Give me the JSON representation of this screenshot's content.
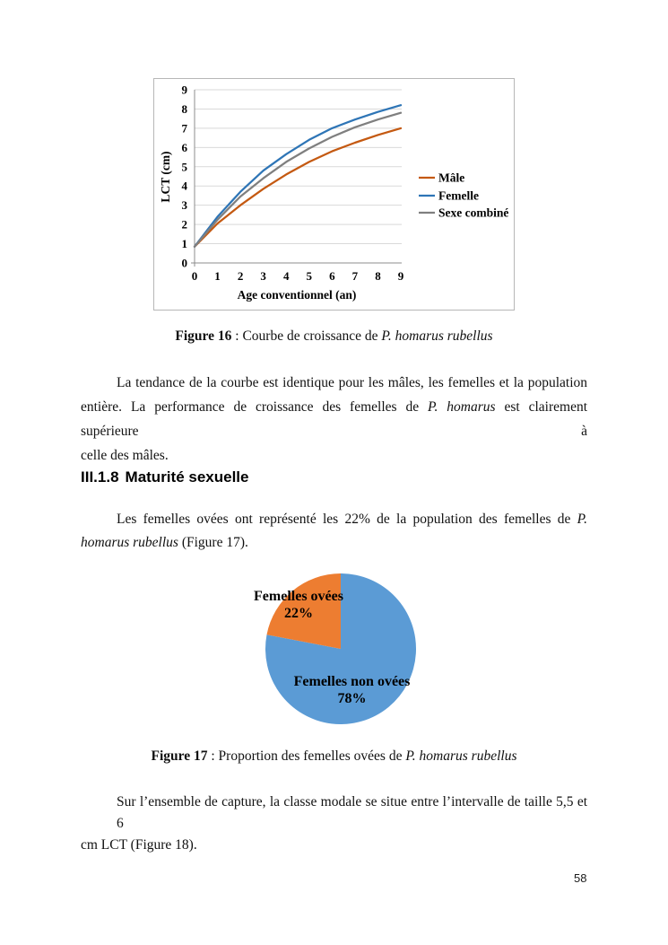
{
  "page": {
    "number": "58"
  },
  "heading": {
    "number": "III.1.8",
    "title": "Maturité sexuelle"
  },
  "figure16_caption": {
    "runs": [
      {
        "t": "Figure 16",
        "b": true
      },
      {
        "t": " : Courbe de croissance de "
      },
      {
        "t": "P. homarus rubellus",
        "i": true
      }
    ]
  },
  "figure17_caption": {
    "runs": [
      {
        "t": "Figure 17",
        "b": true
      },
      {
        "t": " : Proportion des femelles ovées de "
      },
      {
        "t": "P. homarus rubellus",
        "i": true
      }
    ]
  },
  "paragraph1": {
    "lines": [
      [
        {
          "t": "La tendance de la courbe est identique pour les mâles, les femelles et la population"
        }
      ],
      [
        {
          "t": "entière. La performance de croissance des femelles de "
        },
        {
          "t": "P. homarus",
          "i": true
        },
        {
          "t": " est clairement supérieure à"
        }
      ],
      [
        {
          "t": "celle des mâles."
        }
      ]
    ]
  },
  "paragraph2": {
    "lines": [
      [
        {
          "t": "Les femelles ovées ont représenté les 22% de la population des femelles de "
        },
        {
          "t": "P.",
          "i": true
        }
      ],
      [
        {
          "t": "homarus rubellus",
          "i": true
        },
        {
          "t": " (Figure 17)."
        }
      ]
    ]
  },
  "paragraph3": {
    "lines": [
      [
        {
          "t": "Sur l’ensemble de capture, la classe modale se situe entre l’intervalle de taille 5,5 et 6"
        }
      ],
      [
        {
          "t": "cm LCT (Figure 18)."
        }
      ]
    ]
  },
  "chart_data": [
    {
      "type": "line",
      "title": "",
      "xlabel": "Age conventionnel (an)",
      "ylabel": "LCT (cm)",
      "xlim": [
        0,
        9
      ],
      "ylim": [
        0,
        9
      ],
      "xticks": [
        0,
        1,
        2,
        3,
        4,
        5,
        6,
        7,
        8,
        9
      ],
      "yticks": [
        0,
        1,
        2,
        3,
        4,
        5,
        6,
        7,
        8,
        9
      ],
      "grid": true,
      "legend_position": "right",
      "x": [
        0,
        1,
        2,
        3,
        4,
        5,
        6,
        7,
        8,
        9
      ],
      "series": [
        {
          "name": "Mâle",
          "color": "#C45911",
          "values": [
            0.85,
            2.05,
            3.0,
            3.85,
            4.6,
            5.25,
            5.8,
            6.25,
            6.65,
            7.0
          ]
        },
        {
          "name": "Femelle",
          "color": "#2E75B6",
          "values": [
            0.85,
            2.4,
            3.7,
            4.8,
            5.65,
            6.4,
            7.0,
            7.45,
            7.85,
            8.2
          ]
        },
        {
          "name": "Sexe combiné",
          "color": "#7F7F7F",
          "values": [
            0.85,
            2.25,
            3.45,
            4.4,
            5.25,
            5.95,
            6.55,
            7.05,
            7.45,
            7.8
          ]
        }
      ],
      "colors": {
        "gridline": "#D9D9D9",
        "axis": "#8C8C8C",
        "text": "#000000"
      }
    },
    {
      "type": "pie",
      "start_angle_deg": 0,
      "direction": "clockwise",
      "slices": [
        {
          "label": "Femelles non ovées",
          "pct": 78,
          "pct_label": "78%",
          "color": "#5B9BD5"
        },
        {
          "label": "Femelles ovées",
          "pct": 22,
          "pct_label": "22%",
          "color": "#ED7D31"
        }
      ]
    }
  ]
}
